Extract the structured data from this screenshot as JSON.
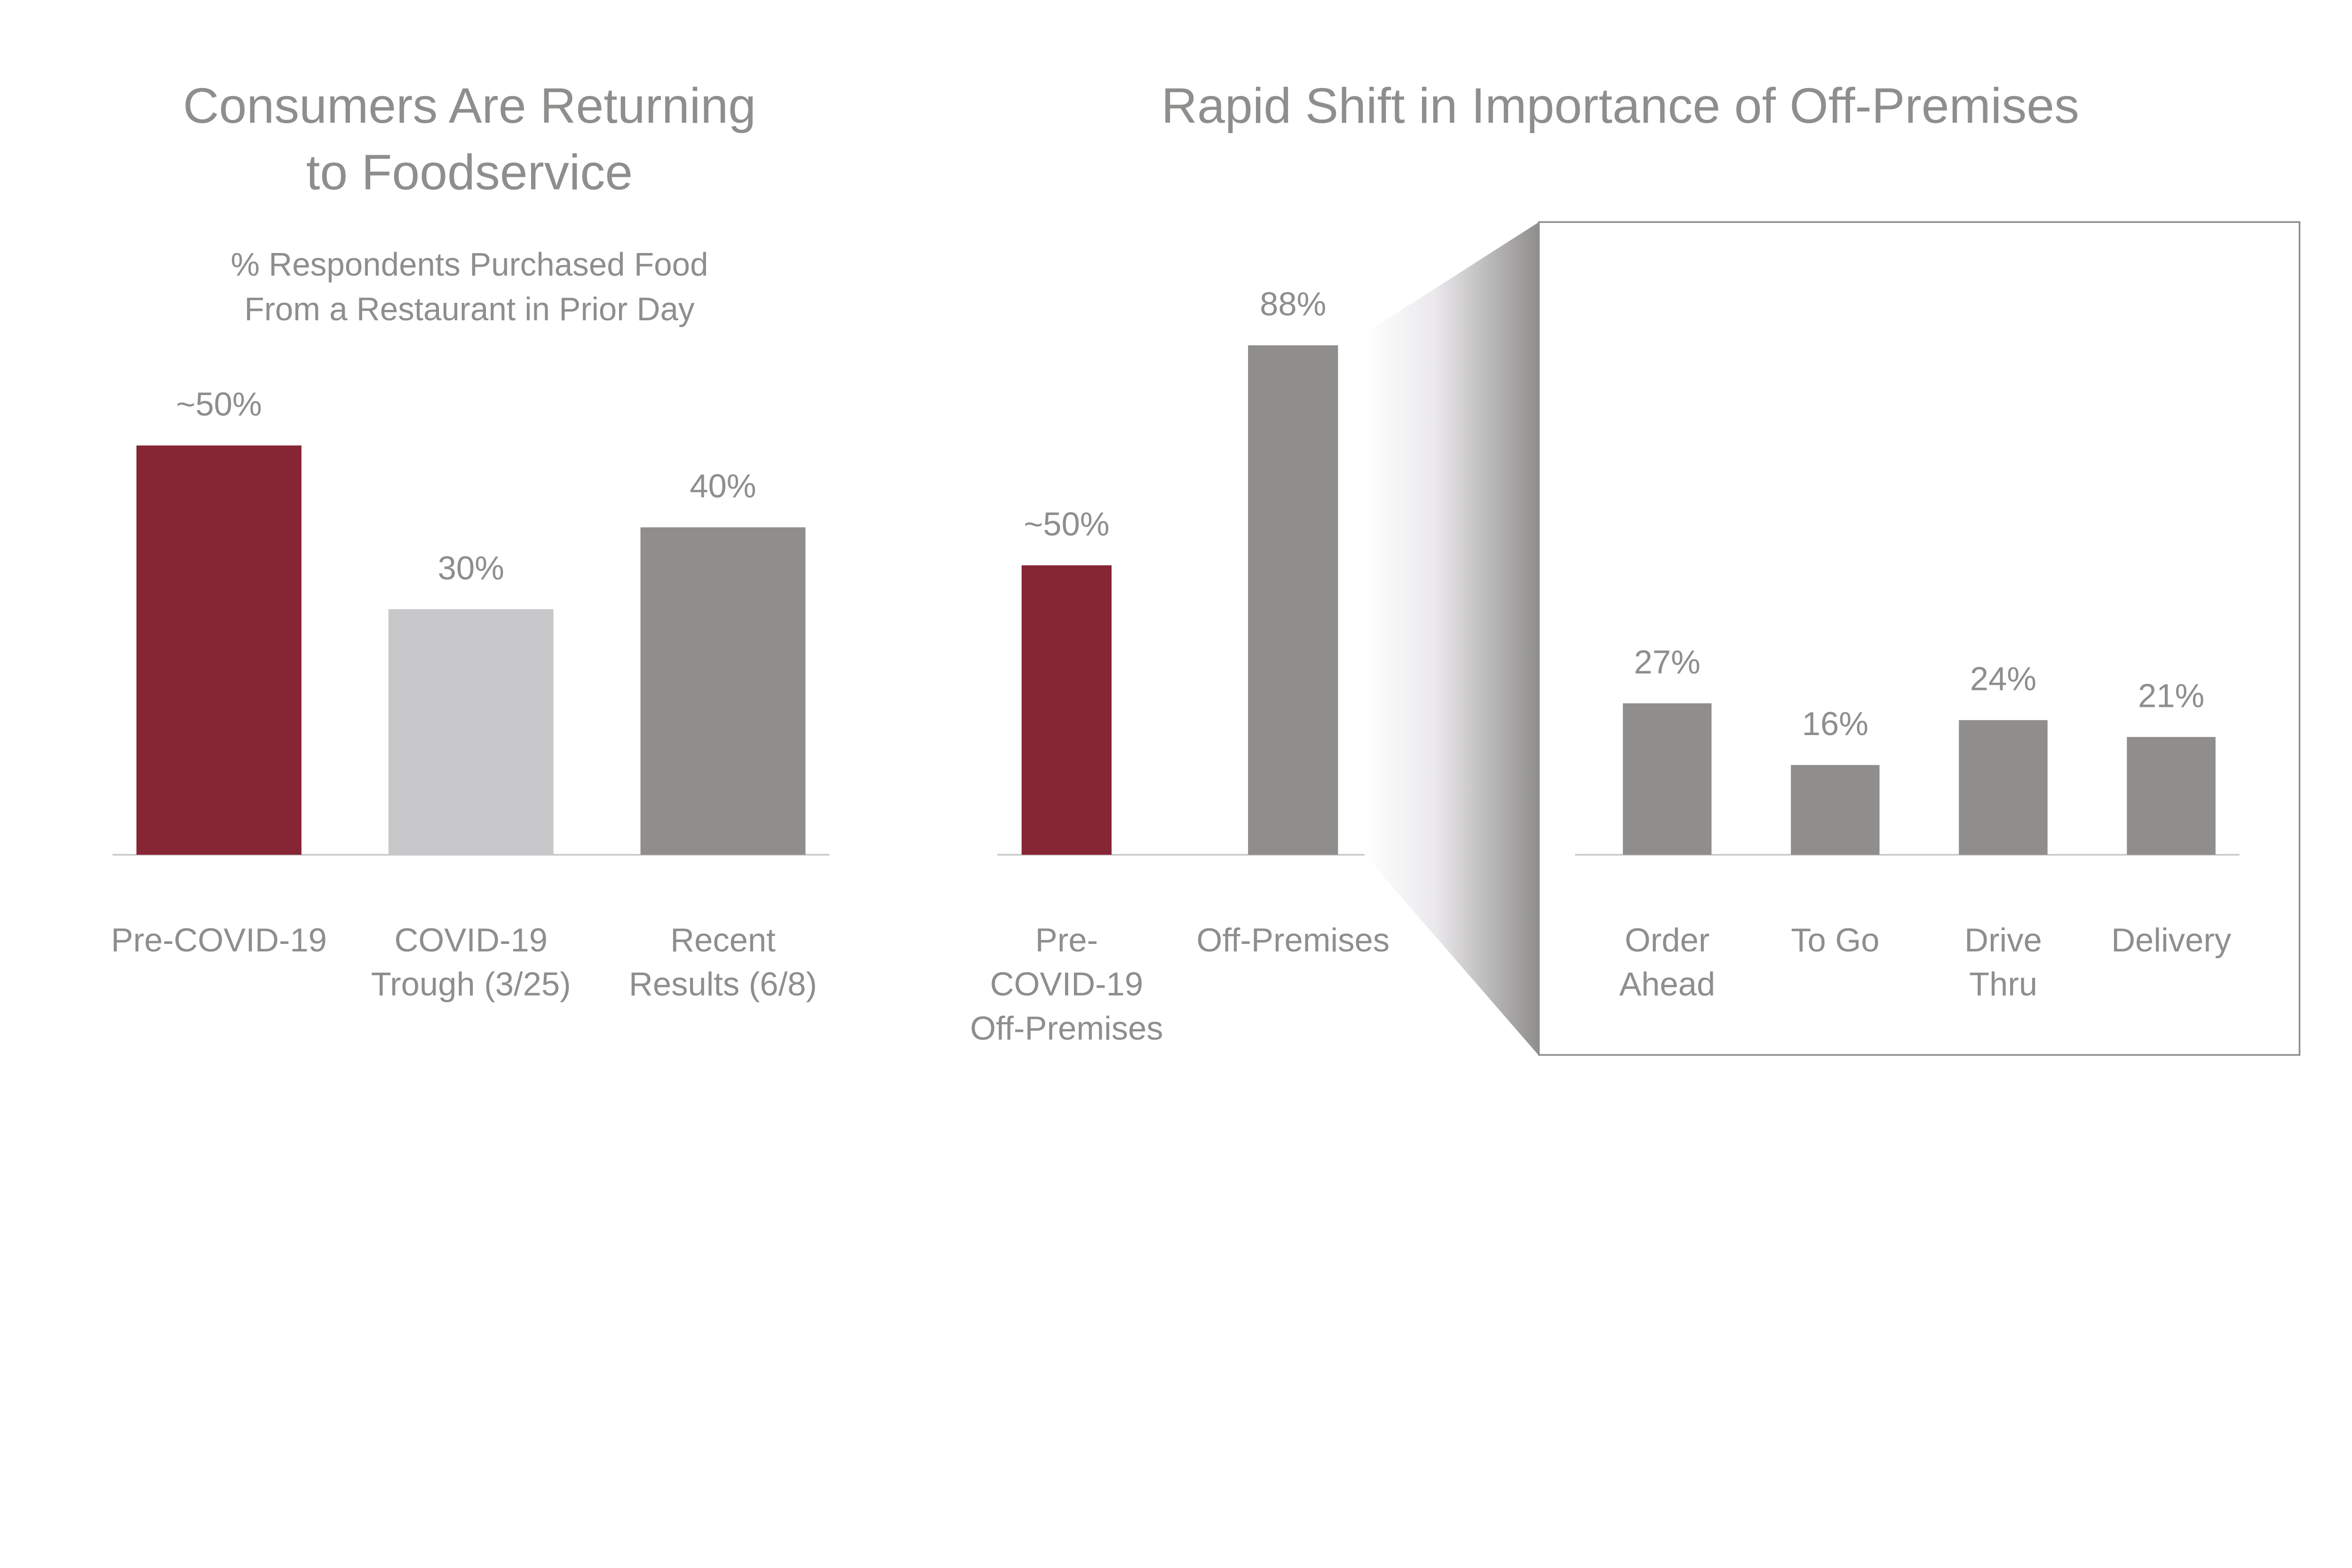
{
  "colors": {
    "accent": "#862534",
    "gray": "#8f8e8c",
    "light_gray": "#c8c8ca",
    "text": "#8f8e8c"
  },
  "chart_data": [
    {
      "type": "bar",
      "title": [
        "Consumers Are Returning",
        "to Foodservice"
      ],
      "subtitle": [
        "% Respondents Purchased Food",
        "From a Restaurant in Prior Day"
      ],
      "categories": [
        [
          "Pre-COVID-19"
        ],
        [
          "COVID-19",
          "Trough (3/25)"
        ],
        [
          "Recent",
          "Results (6/8)"
        ]
      ],
      "values": [
        50,
        30,
        40
      ],
      "data_labels": [
        "~50%",
        "30%",
        "40%"
      ],
      "bar_colors": [
        "#862534",
        "#c8c8ca",
        "#8f8e8c"
      ],
      "ylim": [
        0,
        100
      ],
      "grid": false
    },
    {
      "type": "bar",
      "title": [
        "Rapid Shift in Importance of Off-Premises"
      ],
      "categories": [
        [
          "Pre-",
          "COVID-19",
          "Off-Premises"
        ],
        [
          "Off-Premises"
        ]
      ],
      "values": [
        50,
        88
      ],
      "data_labels": [
        "~50%",
        "88%"
      ],
      "bar_colors": [
        "#862534",
        "#8f8e8c"
      ],
      "ylim": [
        0,
        100
      ],
      "grid": false
    },
    {
      "type": "bar",
      "categories": [
        [
          "Order",
          "Ahead"
        ],
        [
          "To Go"
        ],
        [
          "Drive",
          "Thru"
        ],
        [
          "Delivery"
        ]
      ],
      "values": [
        27,
        16,
        24,
        21
      ],
      "data_labels": [
        "27%",
        "16%",
        "24%",
        "21%"
      ],
      "bar_colors": [
        "#8f8e8c",
        "#8f8e8c",
        "#8f8e8c",
        "#8f8e8c"
      ],
      "ylim": [
        0,
        100
      ],
      "grid": false
    }
  ]
}
